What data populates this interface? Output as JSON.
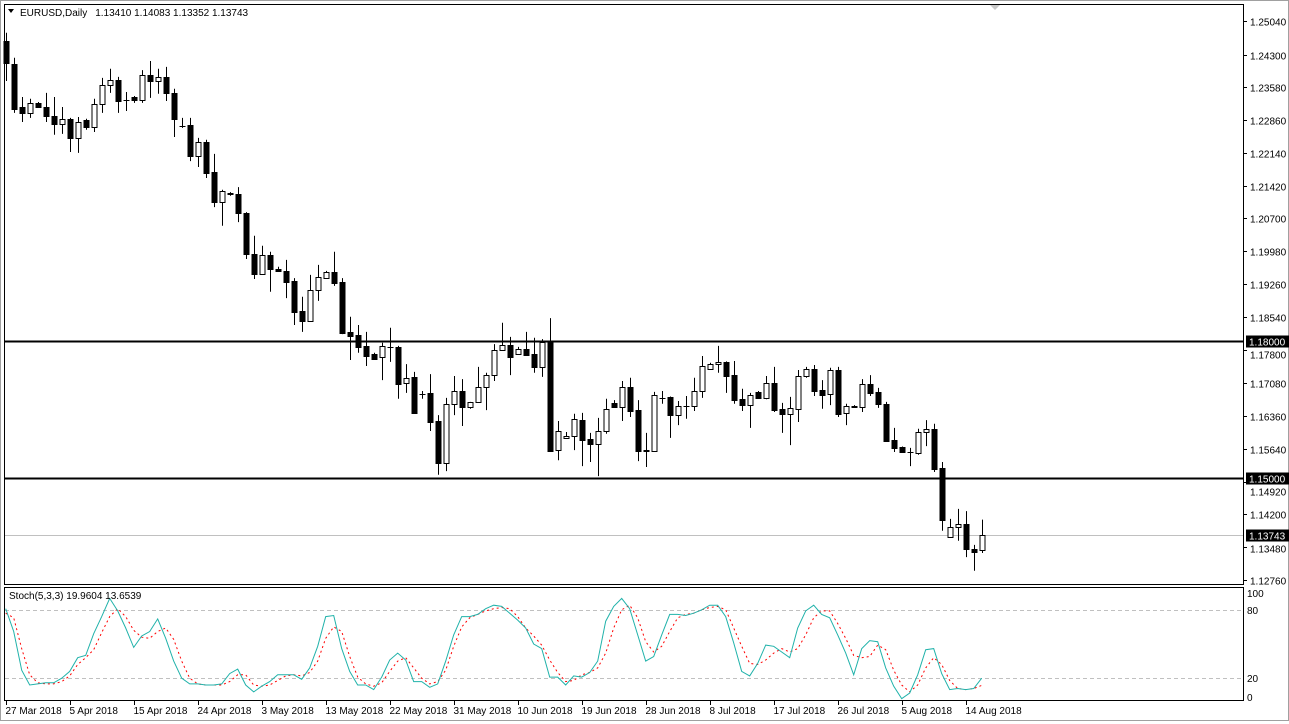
{
  "header": {
    "symbol": "EURUSD,Daily",
    "ohlc_text": "1.13410 1.14083 1.13352 1.13743",
    "menu_icon": "triangle-down-icon"
  },
  "colors": {
    "background": "#ffffff",
    "candle_bear": "#000000",
    "candle_bull": "#ffffff",
    "stoch_main": "#20b2aa",
    "stoch_signal": "#ff0000",
    "level_line": "#000000",
    "bid_line": "#c0c0c0",
    "label_bg": "#000000",
    "label_text": "#ffffff"
  },
  "chart_data": {
    "type": "candlestick",
    "symbol": "EURUSD",
    "timeframe": "Daily",
    "ylim": [
      1.1267,
      1.2539
    ],
    "price_ticks": [
      "1.25040",
      "1.24300",
      "1.23580",
      "1.22860",
      "1.22140",
      "1.21420",
      "1.20700",
      "1.19980",
      "1.19260",
      "1.18540",
      "1.17800",
      "1.17080",
      "1.16360",
      "1.15640",
      "1.14920",
      "1.14200",
      "1.13480",
      "1.12760"
    ],
    "horizontal_lines": [
      {
        "price": 1.18,
        "label": "1.18000"
      },
      {
        "price": 1.15,
        "label": "1.15000"
      }
    ],
    "bid_line": {
      "price": 1.13743,
      "label": "1.13743"
    },
    "date_labels": [
      {
        "bar": 0,
        "text": "27 Mar 2018"
      },
      {
        "bar": 8,
        "text": "5 Apr 2018"
      },
      {
        "bar": 16,
        "text": "15 Apr 2018"
      },
      {
        "bar": 24,
        "text": "24 Apr 2018"
      },
      {
        "bar": 32,
        "text": "3 May 2018"
      },
      {
        "bar": 40,
        "text": "13 May 2018"
      },
      {
        "bar": 48,
        "text": "22 May 2018"
      },
      {
        "bar": 56,
        "text": "31 May 2018"
      },
      {
        "bar": 64,
        "text": "10 Jun 2018"
      },
      {
        "bar": 72,
        "text": "19 Jun 2018"
      },
      {
        "bar": 80,
        "text": "28 Jun 2018"
      },
      {
        "bar": 88,
        "text": "8 Jul 2018"
      },
      {
        "bar": 96,
        "text": "17 Jul 2018"
      },
      {
        "bar": 104,
        "text": "26 Jul 2018"
      },
      {
        "bar": 112,
        "text": "5 Aug 2018"
      },
      {
        "bar": 120,
        "text": "14 Aug 2018"
      }
    ],
    "ohlc": [
      [
        1.246,
        1.2478,
        1.2372,
        1.2412
      ],
      [
        1.241,
        1.2423,
        1.2302,
        1.2311
      ],
      [
        1.2315,
        1.2337,
        1.2282,
        1.2302
      ],
      [
        1.2302,
        1.2333,
        1.2291,
        1.2324
      ],
      [
        1.2324,
        1.2326,
        1.2315,
        1.2315
      ],
      [
        1.2315,
        1.2346,
        1.2282,
        1.2295
      ],
      [
        1.2295,
        1.2337,
        1.2254,
        1.2278
      ],
      [
        1.2278,
        1.2315,
        1.2256,
        1.2289
      ],
      [
        1.2289,
        1.2291,
        1.2216,
        1.2247
      ],
      [
        1.2247,
        1.2293,
        1.2214,
        1.2282
      ],
      [
        1.2286,
        1.2289,
        1.2265,
        1.2271
      ],
      [
        1.2271,
        1.2333,
        1.226,
        1.2322
      ],
      [
        1.2322,
        1.2379,
        1.2302,
        1.2363
      ],
      [
        1.2363,
        1.2399,
        1.2346,
        1.2374
      ],
      [
        1.2374,
        1.2381,
        1.2302,
        1.2328
      ],
      [
        1.233,
        1.2348,
        1.2306,
        1.2331
      ],
      [
        1.2337,
        1.2339,
        1.2324,
        1.233
      ],
      [
        1.233,
        1.2396,
        1.2324,
        1.2385
      ],
      [
        1.2385,
        1.2416,
        1.2335,
        1.2372
      ],
      [
        1.2372,
        1.2399,
        1.2344,
        1.2381
      ],
      [
        1.2381,
        1.2403,
        1.2328,
        1.2346
      ],
      [
        1.2346,
        1.2355,
        1.2249,
        1.2289
      ],
      [
        1.2273,
        1.2291,
        1.2269,
        1.2273
      ],
      [
        1.2276,
        1.2291,
        1.2196,
        1.2207
      ],
      [
        1.2207,
        1.2247,
        1.2183,
        1.2238
      ],
      [
        1.2238,
        1.2243,
        1.2159,
        1.217
      ],
      [
        1.2172,
        1.2212,
        1.2095,
        1.2106
      ],
      [
        1.2106,
        1.2133,
        1.2054,
        1.2131
      ],
      [
        1.2124,
        1.2128,
        1.212,
        1.2125
      ],
      [
        1.2124,
        1.2139,
        1.2062,
        1.2082
      ],
      [
        1.2082,
        1.2084,
        1.1981,
        1.1992
      ],
      [
        1.1992,
        1.2032,
        1.1937,
        1.1948
      ],
      [
        1.1948,
        1.201,
        1.1946,
        1.199
      ],
      [
        1.199,
        1.1997,
        1.1909,
        1.1959
      ],
      [
        1.1959,
        1.1964,
        1.1955,
        1.1955
      ],
      [
        1.1955,
        1.1979,
        1.1895,
        1.1931
      ],
      [
        1.1933,
        1.1939,
        1.1836,
        1.1865
      ],
      [
        1.1867,
        1.1898,
        1.1821,
        1.1845
      ],
      [
        1.1845,
        1.1946,
        1.1843,
        1.1913
      ],
      [
        1.1913,
        1.1968,
        1.1889,
        1.1942
      ],
      [
        1.1939,
        1.1955,
        1.1937,
        1.1953
      ],
      [
        1.1953,
        1.1997,
        1.1922,
        1.1928
      ],
      [
        1.1931,
        1.1939,
        1.1816,
        1.1819
      ],
      [
        1.1821,
        1.1854,
        1.1759,
        1.1812
      ],
      [
        1.1814,
        1.1836,
        1.1775,
        1.1788
      ],
      [
        1.179,
        1.1821,
        1.1746,
        1.1768
      ],
      [
        1.1772,
        1.1775,
        1.1759,
        1.1761
      ],
      [
        1.1766,
        1.1797,
        1.1715,
        1.179
      ],
      [
        1.1788,
        1.183,
        1.1755,
        1.1787
      ],
      [
        1.1788,
        1.179,
        1.1674,
        1.1706
      ],
      [
        1.1709,
        1.175,
        1.1687,
        1.172
      ],
      [
        1.1722,
        1.1733,
        1.1642,
        1.1643
      ],
      [
        1.1684,
        1.1691,
        1.1674,
        1.1685
      ],
      [
        1.1687,
        1.1728,
        1.1603,
        1.1623
      ],
      [
        1.1625,
        1.1638,
        1.1507,
        1.1533
      ],
      [
        1.1533,
        1.1676,
        1.1515,
        1.1663
      ],
      [
        1.1663,
        1.1724,
        1.1638,
        1.1691
      ],
      [
        1.1691,
        1.1717,
        1.1614,
        1.1656
      ],
      [
        1.1656,
        1.1667,
        1.1652,
        1.1667
      ],
      [
        1.1667,
        1.1744,
        1.1665,
        1.17
      ],
      [
        1.17,
        1.1731,
        1.1649,
        1.1726
      ],
      [
        1.1726,
        1.1794,
        1.1713,
        1.1781
      ],
      [
        1.1781,
        1.1841,
        1.178,
        1.1792
      ],
      [
        1.1792,
        1.181,
        1.1726,
        1.1766
      ],
      [
        1.1772,
        1.1788,
        1.177,
        1.1783
      ],
      [
        1.1783,
        1.1821,
        1.177,
        1.1771
      ],
      [
        1.1772,
        1.1808,
        1.1731,
        1.1744
      ],
      [
        1.1744,
        1.1805,
        1.1722,
        1.1799
      ],
      [
        1.1799,
        1.1851,
        1.1557,
        1.1559
      ],
      [
        1.1561,
        1.1625,
        1.1539,
        1.1603
      ],
      [
        1.1588,
        1.1601,
        1.1586,
        1.1592
      ],
      [
        1.1592,
        1.1641,
        1.1561,
        1.163
      ],
      [
        1.1627,
        1.1643,
        1.1526,
        1.1583
      ],
      [
        1.1586,
        1.1599,
        1.1535,
        1.1575
      ],
      [
        1.1575,
        1.1632,
        1.1504,
        1.1603
      ],
      [
        1.1603,
        1.1674,
        1.1597,
        1.1652
      ],
      [
        1.1665,
        1.1671,
        1.1656,
        1.1656
      ],
      [
        1.1656,
        1.1713,
        1.1625,
        1.17
      ],
      [
        1.17,
        1.172,
        1.1634,
        1.1647
      ],
      [
        1.1649,
        1.1671,
        1.1537,
        1.1559
      ],
      [
        1.1561,
        1.1599,
        1.1524,
        1.156
      ],
      [
        1.1559,
        1.1689,
        1.1557,
        1.1682
      ],
      [
        1.1676,
        1.1691,
        1.1663,
        1.1675
      ],
      [
        1.1678,
        1.1679,
        1.1588,
        1.1638
      ],
      [
        1.1638,
        1.1669,
        1.1616,
        1.1658
      ],
      [
        1.1658,
        1.168,
        1.163,
        1.1659
      ],
      [
        1.1658,
        1.172,
        1.1647,
        1.1691
      ],
      [
        1.1691,
        1.1768,
        1.1676,
        1.1746
      ],
      [
        1.1739,
        1.1753,
        1.1738,
        1.175
      ],
      [
        1.175,
        1.179,
        1.1731,
        1.1755
      ],
      [
        1.1755,
        1.1756,
        1.1687,
        1.1724
      ],
      [
        1.1726,
        1.1757,
        1.1663,
        1.1671
      ],
      [
        1.1674,
        1.1696,
        1.1647,
        1.166
      ],
      [
        1.166,
        1.1687,
        1.161,
        1.1682
      ],
      [
        1.1689,
        1.1691,
        1.1674,
        1.1676
      ],
      [
        1.1676,
        1.1724,
        1.1673,
        1.1709
      ],
      [
        1.1709,
        1.1744,
        1.1645,
        1.1649
      ],
      [
        1.1652,
        1.1665,
        1.1599,
        1.1641
      ],
      [
        1.1641,
        1.1678,
        1.1572,
        1.1654
      ],
      [
        1.1652,
        1.1737,
        1.1623,
        1.1724
      ],
      [
        1.1724,
        1.1744,
        1.172,
        1.1739
      ],
      [
        1.1739,
        1.1748,
        1.168,
        1.1691
      ],
      [
        1.1693,
        1.1715,
        1.1652,
        1.1682
      ],
      [
        1.1684,
        1.1742,
        1.166,
        1.1737
      ],
      [
        1.1737,
        1.1744,
        1.1634,
        1.1641
      ],
      [
        1.1643,
        1.1663,
        1.1616,
        1.1658
      ],
      [
        1.1656,
        1.166,
        1.1654,
        1.1657
      ],
      [
        1.1656,
        1.1717,
        1.1645,
        1.1706
      ],
      [
        1.1706,
        1.1726,
        1.168,
        1.1687
      ],
      [
        1.1689,
        1.1698,
        1.1654,
        1.1663
      ],
      [
        1.1663,
        1.1667,
        1.1579,
        1.1581
      ],
      [
        1.1583,
        1.161,
        1.1557,
        1.1566
      ],
      [
        1.1568,
        1.1569,
        1.1557,
        1.1558
      ],
      [
        1.1557,
        1.1566,
        1.1526,
        1.1558
      ],
      [
        1.1555,
        1.1608,
        1.1551,
        1.1601
      ],
      [
        1.1601,
        1.1627,
        1.157,
        1.1608
      ],
      [
        1.1608,
        1.1619,
        1.1513,
        1.152
      ],
      [
        1.1522,
        1.1535,
        1.1384,
        1.1408
      ],
      [
        1.137,
        1.141,
        1.137,
        1.1392
      ],
      [
        1.1392,
        1.1432,
        1.1362,
        1.1399
      ],
      [
        1.1399,
        1.1427,
        1.1326,
        1.1344
      ],
      [
        1.1344,
        1.1353,
        1.1296,
        1.1337
      ],
      [
        1.1341,
        1.14083,
        1.13352,
        1.13743
      ]
    ],
    "stochastic": {
      "label": "Stoch(5,3,3) 19.9604 13.6539",
      "ylim": [
        0,
        100
      ],
      "levels": [
        80,
        20
      ],
      "ticks": [
        "100",
        "80",
        "20",
        "0"
      ],
      "main": [
        81,
        61,
        27,
        14,
        15,
        16,
        16,
        20,
        26,
        38,
        40,
        59,
        74,
        90,
        79,
        64,
        47,
        57,
        61,
        72,
        55,
        35,
        20,
        15,
        15,
        14,
        14,
        15,
        24,
        28,
        14,
        8,
        13,
        17,
        23,
        23,
        23,
        19,
        29,
        48,
        74,
        75,
        46,
        26,
        14,
        14,
        10,
        21,
        36,
        42,
        36,
        17,
        17,
        12,
        15,
        35,
        58,
        74,
        74,
        76,
        81,
        84,
        83,
        77,
        71,
        64,
        50,
        46,
        21,
        21,
        14,
        22,
        21,
        25,
        35,
        70,
        83,
        90,
        81,
        58,
        35,
        39,
        58,
        76,
        76,
        75,
        77,
        80,
        84,
        84,
        74,
        51,
        26,
        22,
        33,
        49,
        48,
        43,
        38,
        64,
        79,
        84,
        76,
        73,
        58,
        42,
        23,
        46,
        53,
        52,
        29,
        13,
        2,
        7,
        23,
        45,
        46,
        24,
        10,
        11,
        10,
        11,
        19.9604
      ],
      "signal": [
        77,
        73,
        46,
        23,
        16,
        15,
        15,
        17,
        22,
        32,
        38,
        45,
        60,
        74,
        81,
        74,
        62,
        56,
        55,
        61,
        64,
        54,
        35,
        20,
        15,
        14,
        14,
        14,
        17,
        23,
        23,
        14,
        13,
        14,
        18,
        22,
        23,
        22,
        25,
        35,
        55,
        65,
        61,
        39,
        21,
        15,
        13,
        16,
        26,
        35,
        38,
        29,
        20,
        15,
        17,
        27,
        48,
        65,
        73,
        76,
        79,
        81,
        82,
        81,
        74,
        64,
        57,
        49,
        36,
        25,
        17,
        18,
        23,
        25,
        29,
        42,
        64,
        80,
        84,
        73,
        52,
        43,
        48,
        61,
        73,
        76,
        77,
        80,
        82,
        83,
        80,
        64,
        48,
        33,
        32,
        36,
        42,
        46,
        43,
        46,
        58,
        73,
        79,
        79,
        68,
        55,
        40,
        38,
        39,
        49,
        45,
        27,
        14,
        8,
        14,
        29,
        38,
        32,
        18,
        11,
        10,
        11,
        13.6539
      ]
    }
  }
}
